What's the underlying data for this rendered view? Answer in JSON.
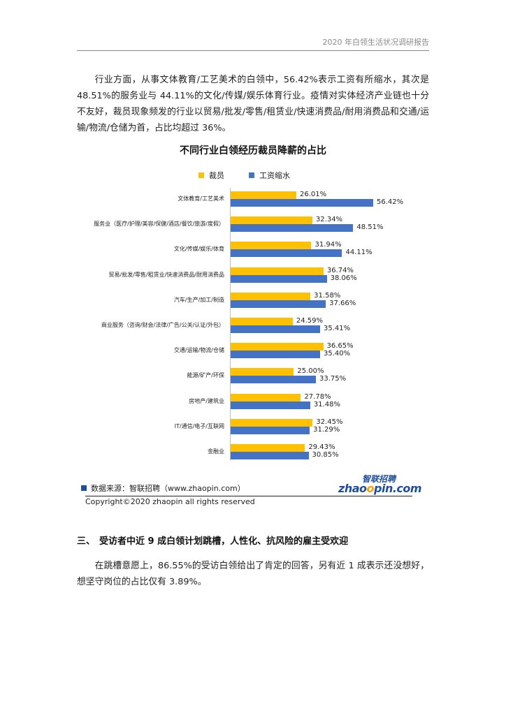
{
  "header": {
    "title": "2020 年白领生活状况调研报告"
  },
  "paragraph1": "行业方面，从事文体教育/工艺美术的白领中，56.42%表示工资有所缩水，其次是48.51%的服务业与 44.11%的文化/传媒/娱乐体育行业。疫情对实体经济产业链也十分不友好，裁员现象频发的行业以贸易/批发/零售/租赁业/快速消费品/耐用消费品和交通/运输/物流/仓储为首，占比均超过 36%。",
  "chart_data": {
    "type": "bar",
    "orientation": "horizontal",
    "title": "不同行业白领经历裁员降薪的占比",
    "legend_position": "top",
    "value_format": "percent",
    "categories": [
      "文体教育/工艺美术",
      "服务业（医疗/护理/美容/保健/酒店/餐饮/旅游/度假）",
      "文化/传媒/娱乐/体育",
      "贸易/批发/零售/租赁业/快速消费品/耐用消费品",
      "汽车/生产/加工/制造",
      "商业服务（咨询/财会/法律/广告/公关/认证/外包）",
      "交通/运输/物流/仓储",
      "能源/矿产/环保",
      "房地产/建筑业",
      "IT/通信/电子/互联网",
      "金融业"
    ],
    "series": [
      {
        "name": "裁员",
        "color": "#ffc000",
        "values": [
          26.01,
          32.34,
          31.94,
          36.74,
          31.58,
          24.59,
          36.65,
          25.0,
          27.78,
          32.45,
          29.43
        ]
      },
      {
        "name": "工资缩水",
        "color": "#4472c4",
        "values": [
          56.42,
          48.51,
          44.11,
          38.06,
          37.66,
          35.41,
          35.4,
          33.75,
          31.48,
          31.29,
          30.85
        ]
      }
    ],
    "xlim": [
      0,
      60
    ],
    "grid": false
  },
  "source": "数据来源：智联招聘（www.zhaopin.com）",
  "logo": {
    "cn": "智联招聘",
    "en_pre": "zhao",
    "en_o": "o",
    "en_post": "pin.com"
  },
  "copyright": "Copyright©2020 zhaopin all rights reserved",
  "section3": {
    "number": "三、",
    "title": "受访者中近 9 成白领计划跳槽，人性化、抗风险的雇主受欢迎"
  },
  "paragraph2": "在跳槽意愿上，86.55%的受访白领给出了肯定的回答，另有近 1 成表示还没想好，想坚守岗位的占比仅有 3.89%。"
}
